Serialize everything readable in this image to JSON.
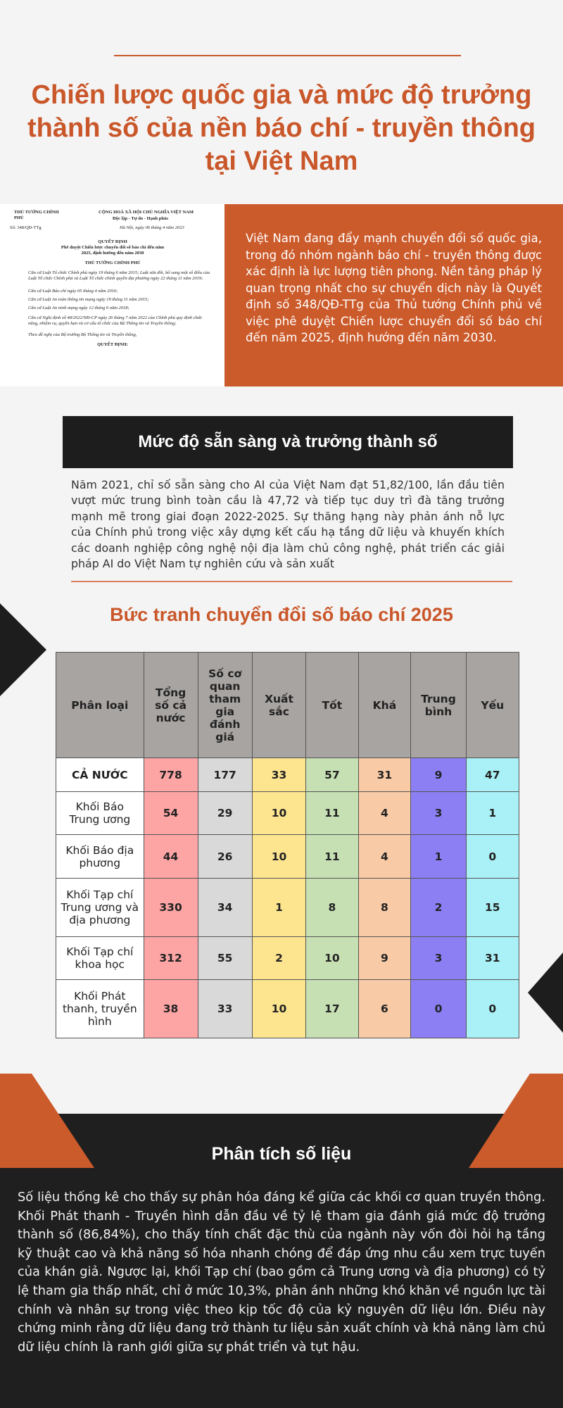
{
  "header": {
    "title": "Chiến lược quốc gia và mức độ trưởng thành số của nền báo chí - truyền thông tại Việt Nam"
  },
  "intro": {
    "document_lines": [
      "THỦ TƯỚNG CHÍNH PHỦ",
      "CỘNG HOÀ XÃ HỘI CHỦ NGHĨA VIỆT NAM",
      "Độc lập - Tự do - Hạnh phúc",
      "Số: 348/QĐ-TTg",
      "Hà Nội, ngày 06 tháng 4 năm 2023",
      "QUYẾT ĐỊNH",
      "Phê duyệt Chiến lược chuyển đổi số báo chí đến năm 2025, định hướng đến năm 2030",
      "THỦ TƯỚNG CHÍNH PHỦ",
      "Căn cứ Luật Tổ chức Chính phủ ngày 19 tháng 6 năm 2015; Luật sửa đổi, bổ sung một số điều của Luật Tổ chức Chính phủ và Luật Tổ chức chính quyền địa phương ngày 22 tháng 11 năm 2019;",
      "Căn cứ Luật Báo chí ngày 05 tháng 4 năm 2016;",
      "Căn cứ Luật An toàn thông tin mạng ngày 19 tháng 11 năm 2015;",
      "Căn cứ Luật An ninh mạng ngày 12 tháng 6 năm 2018;",
      "Căn cứ Nghị định số 48/2022/NĐ-CP ngày 26 tháng 7 năm 2022 của Chính phủ quy định chức năng, nhiệm vụ, quyền hạn và cơ cấu tổ chức của Bộ Thông tin và Truyền thông;",
      "Theo đề nghị của Bộ trưởng Bộ Thông tin và Truyền thông,",
      "QUYẾT ĐỊNH:"
    ],
    "text": "Việt Nam đang đẩy mạnh chuyển đổi số quốc gia, trong đó nhóm ngành báo chí - truyền thông được xác định là lực lượng tiên phong. Nền tảng pháp lý quan trọng nhất cho sự chuyển dịch này là Quyết định số 348/QĐ-TTg của Thủ tướng Chính phủ về việc phê duyệt Chiến lược chuyển đổi số báo chí đến năm 2025, định hướng đến năm 2030."
  },
  "readiness": {
    "title": "Mức độ sẵn sàng và trưởng thành số",
    "text": "Năm 2021, chỉ số sẵn sàng cho AI của Việt Nam đạt 51,82/100, lần đầu tiên vượt mức trung bình toàn cầu là 47,72 và tiếp tục duy trì đà tăng trưởng mạnh mẽ trong giai đoạn 2022-2025. Sự thăng hạng này phản ánh nỗ lực của Chính phủ trong việc xây dựng kết cấu hạ tầng dữ liệu và khuyến khích các doanh nghiệp công nghệ nội địa làm chủ công nghệ, phát triển các giải pháp AI do Việt Nam tự nghiên cứu và sản xuất"
  },
  "table": {
    "title": "Bức tranh chuyển đổi số báo chí 2025",
    "headers": [
      "Phân loại",
      "Tổng số cả nước",
      "Số cơ quan tham gia đánh giá",
      "Xuất sắc",
      "Tốt",
      "Khá",
      "Trung bình",
      "Yếu"
    ],
    "rows": [
      [
        "CẢ NƯỚC",
        778,
        177,
        33,
        57,
        31,
        9,
        47
      ],
      [
        "Khối Báo Trung ương",
        54,
        29,
        10,
        11,
        4,
        3,
        1
      ],
      [
        "Khối Báo địa phương",
        44,
        26,
        10,
        11,
        4,
        1,
        0
      ],
      [
        "Khối Tạp chí Trung ương và địa phương",
        330,
        34,
        1,
        8,
        8,
        2,
        15
      ],
      [
        "Khối Tạp chí khoa học",
        312,
        55,
        2,
        10,
        9,
        3,
        31
      ],
      [
        "Khối Phát thanh, truyền hình",
        38,
        33,
        10,
        17,
        6,
        0,
        0
      ]
    ]
  },
  "analysis": {
    "title": "Phân tích số liệu",
    "text": "Số liệu thống kê cho thấy sự phân hóa đáng kể giữa các khối cơ quan truyền thông. Khối Phát thanh - Truyền hình dẫn đầu về tỷ lệ tham gia đánh giá mức độ trưởng thành số (86,84%), cho thấy tính chất đặc thù của ngành này vốn đòi hỏi hạ tầng kỹ thuật cao và khả năng số hóa nhanh chóng để đáp ứng nhu cầu xem trực tuyến của khán giả. Ngược lại, khối Tạp chí (bao gồm cả Trung ương và địa phương) có tỷ lệ tham gia thấp nhất, chỉ ở mức 10,3%, phản ánh những khó khăn về nguồn lực tài chính và nhân sự trong việc theo kịp tốc độ của kỷ nguyên dữ liệu lớn. Điều này chứng minh rằng dữ liệu đang trở thành tư liệu sản xuất chính và khả năng làm chủ dữ liệu chính là ranh giới giữa sự phát triển và tụt hậu."
  }
}
